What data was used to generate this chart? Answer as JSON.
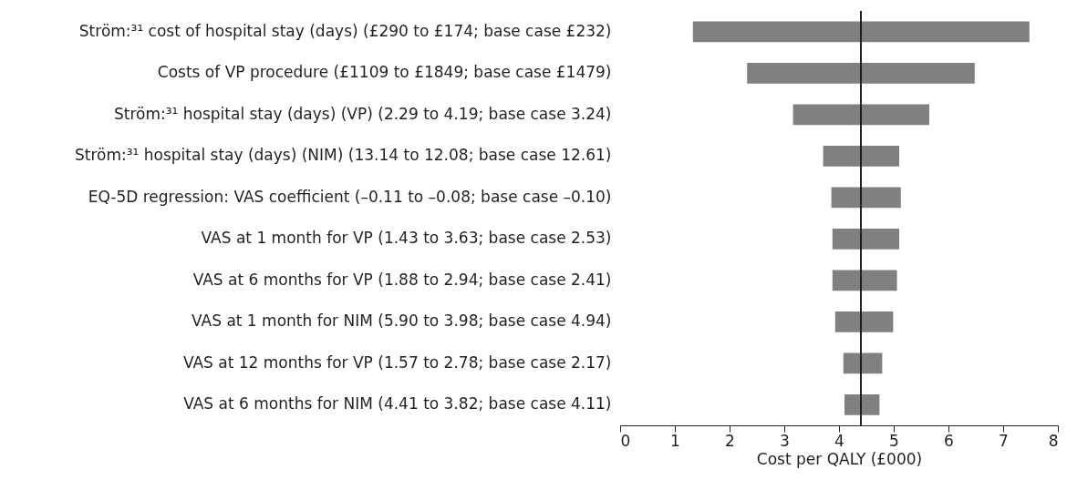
{
  "chart_data": {
    "type": "bar",
    "orientation": "horizontal",
    "xlabel": "Cost per QALY (£000)",
    "categories": [
      "Ström:³¹ cost of hospital stay (days) (£290 to £174; base case £232)",
      "Costs of VP procedure (£1109 to £1849; base case £1479)",
      "Ström:³¹ hospital stay (days) (VP) (2.29 to 4.19; base case 3.24)",
      "Ström:³¹ hospital stay (days) (NIM) (13.14 to 12.08; base case 12.61)",
      "EQ-5D regression: VAS coefficient (–0.11 to –0.08; base case –0.10)",
      "VAS at 1 month for VP (1.43 to 3.63; base case 2.53)",
      "VAS at 6 months for VP (1.88 to 2.94; base case 2.41)",
      "VAS at 1 month for NIM (5.90 to 3.98; base case 4.94)",
      "VAS at 12 months for VP (1.57 to 2.78; base case 2.17)",
      "VAS at 6 months for NIM (4.41 to 3.82; base case 4.11)"
    ],
    "base": [
      1.33,
      2.32,
      3.16,
      3.71,
      3.86,
      3.88,
      3.88,
      3.93,
      4.08,
      4.1
    ],
    "values": [
      6.15,
      4.16,
      2.49,
      1.39,
      1.27,
      1.22,
      1.18,
      1.06,
      0.71,
      0.64
    ],
    "color": "#808083",
    "xlim": [
      0,
      8
    ],
    "xticks": [
      0,
      1,
      2,
      3,
      4,
      5,
      6,
      7,
      8
    ],
    "ref_lines": [
      {
        "axis": "x",
        "value": 4.4,
        "color": "#231f20"
      }
    ]
  }
}
